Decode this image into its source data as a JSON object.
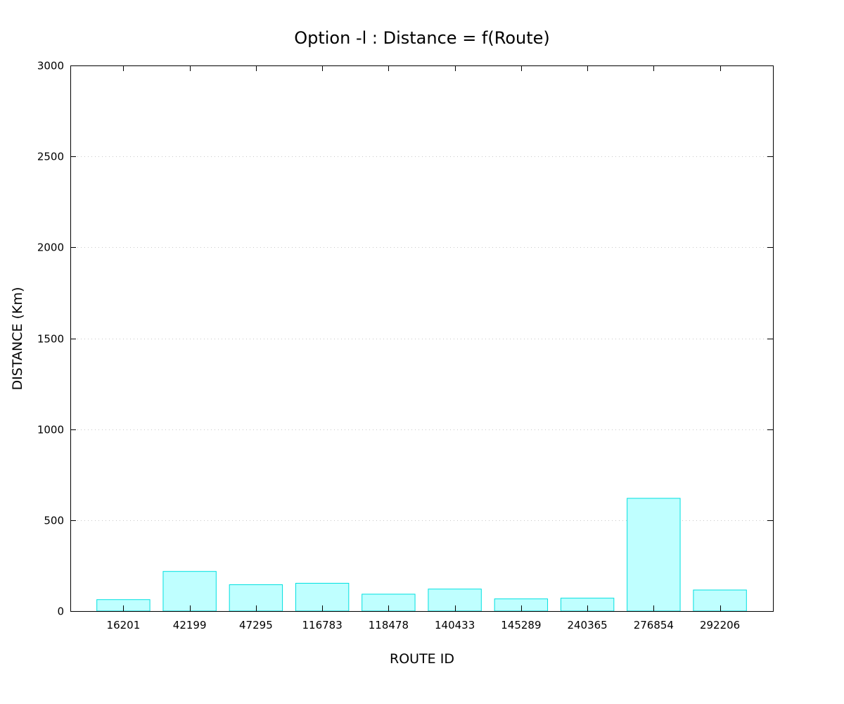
{
  "chart_data": {
    "type": "bar",
    "title": "Option -l : Distance = f(Route)",
    "xlabel": "ROUTE ID",
    "ylabel": "DISTANCE (Km)",
    "categories": [
      "16201",
      "42199",
      "47295",
      "116783",
      "118478",
      "140433",
      "145289",
      "240365",
      "276854",
      "292206"
    ],
    "values": [
      63,
      218,
      145,
      153,
      93,
      121,
      67,
      71,
      620,
      116
    ],
    "ylim": [
      0,
      3000
    ],
    "yticks": [
      "0",
      "500",
      "1000",
      "1500",
      "2000",
      "2500",
      "3000"
    ],
    "grid": "horizontal dotted",
    "legend": "none",
    "colors": {
      "bar_fill": "#bfffff",
      "bar_stroke": "#00e0e0"
    }
  }
}
